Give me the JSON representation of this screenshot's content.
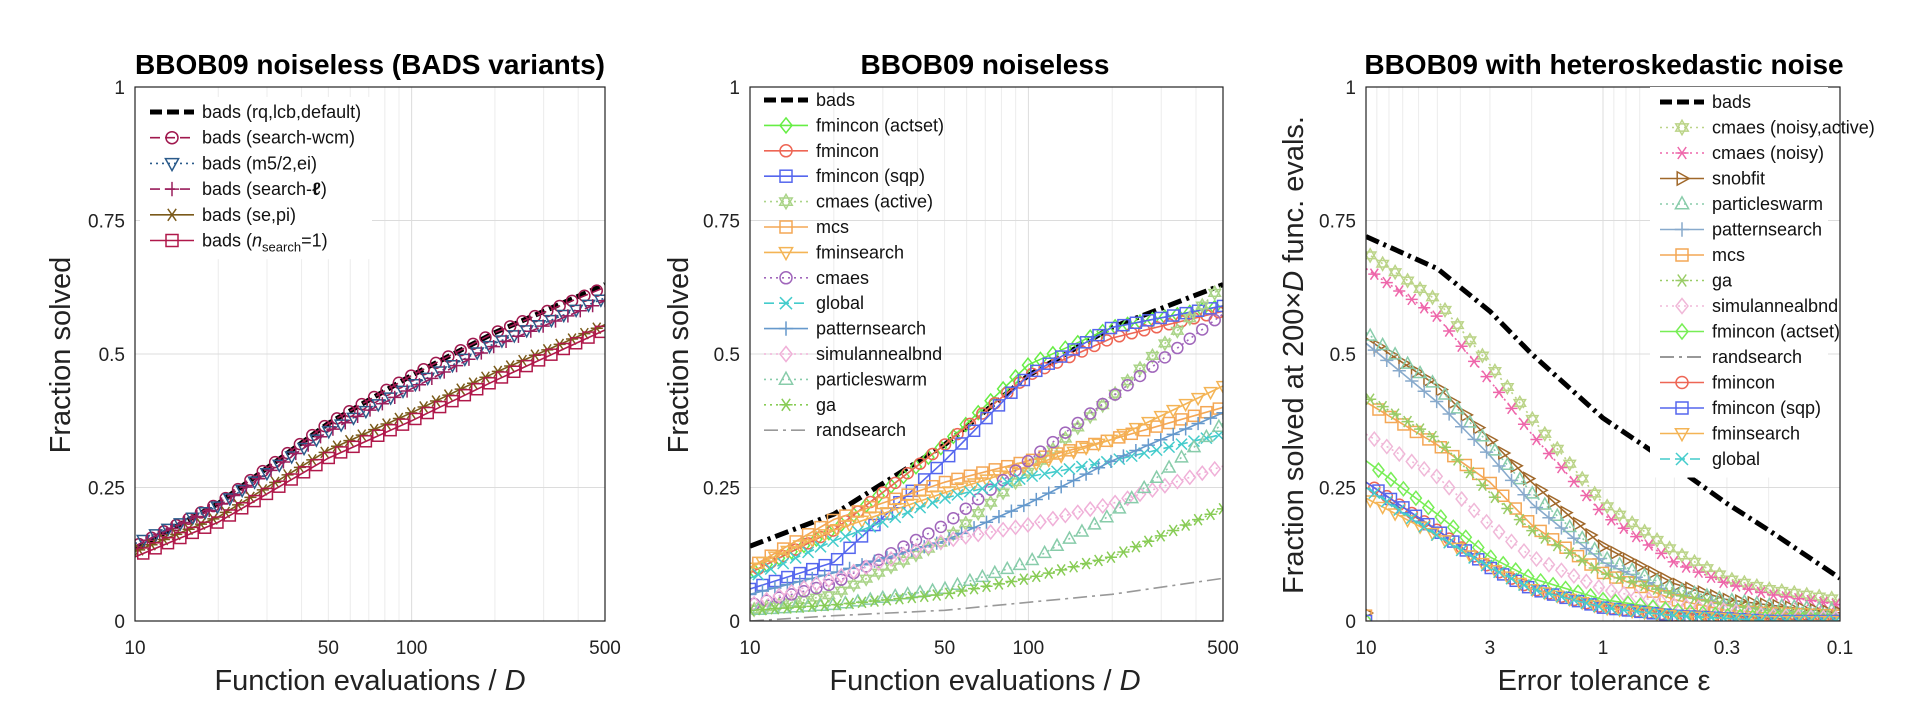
{
  "chart_data": [
    {
      "type": "line",
      "title": "BBOB09 noiseless (BADS variants)",
      "xlabel": "Function evaluations / ",
      "xlabel_italic": "D",
      "ylabel": "Fraction solved",
      "xscale": "log",
      "xlim": [
        10,
        500
      ],
      "ylim": [
        0,
        1
      ],
      "xticks": [
        10,
        50,
        100,
        500
      ],
      "xtick_labels": [
        "10",
        "50",
        "100",
        "500"
      ],
      "yticks": [
        0,
        0.25,
        0.5,
        0.75,
        1
      ],
      "ytick_labels": [
        "0",
        "0.25",
        "0.5",
        "0.75",
        "1"
      ],
      "grid": true,
      "legend": "top-left",
      "x": [
        10,
        20,
        50,
        100,
        200,
        500
      ],
      "series": [
        {
          "name": "bads (rq,lcb,default)",
          "color": "#000000",
          "style": "dash",
          "marker": "none",
          "width": 5,
          "values": [
            0.135,
            0.22,
            0.37,
            0.46,
            0.54,
            0.63
          ]
        },
        {
          "name": "bads (search-wcm)",
          "color": "#a0184e",
          "style": "dash",
          "marker": "circle",
          "width": 1.6,
          "values": [
            0.14,
            0.22,
            0.37,
            0.46,
            0.54,
            0.625
          ]
        },
        {
          "name": "bads (m5/2,ei)",
          "color": "#2a5a8a",
          "style": "dot",
          "marker": "triangle-down",
          "width": 1.6,
          "values": [
            0.145,
            0.215,
            0.355,
            0.44,
            0.52,
            0.605
          ]
        },
        {
          "name": "bads (search-",
          "name_bold": "ℓ",
          "name_after": ")",
          "color": "#9a1e5c",
          "style": "dash",
          "marker": "plus",
          "width": 1.6,
          "values": [
            0.14,
            0.215,
            0.355,
            0.435,
            0.515,
            0.6
          ]
        },
        {
          "name": "bads (se,pi)",
          "color": "#7a5a1a",
          "style": "solid",
          "marker": "asterisk",
          "width": 1.6,
          "values": [
            0.13,
            0.195,
            0.32,
            0.39,
            0.465,
            0.555
          ]
        },
        {
          "name": "bads (",
          "name_italic": "n",
          "name_sub": "search",
          "name_after": "=1)",
          "color": "#b0184a",
          "style": "solid",
          "marker": "square",
          "width": 1.6,
          "values": [
            0.12,
            0.185,
            0.305,
            0.375,
            0.45,
            0.545
          ]
        }
      ]
    },
    {
      "type": "line",
      "title": "BBOB09 noiseless",
      "xlabel": "Function evaluations / ",
      "xlabel_italic": "D",
      "ylabel": "Fraction solved",
      "xscale": "log",
      "xlim": [
        10,
        500
      ],
      "ylim": [
        0,
        1
      ],
      "xticks": [
        10,
        50,
        100,
        500
      ],
      "xtick_labels": [
        "10",
        "50",
        "100",
        "500"
      ],
      "yticks": [
        0,
        0.25,
        0.5,
        0.75,
        1
      ],
      "ytick_labels": [
        "0",
        "0.25",
        "0.5",
        "0.75",
        "1"
      ],
      "grid": true,
      "legend": "top-left",
      "x": [
        10,
        20,
        50,
        100,
        200,
        500
      ],
      "series": [
        {
          "name": "bads",
          "color": "#000000",
          "style": "dashdot",
          "marker": "none",
          "width": 5,
          "values": [
            0.14,
            0.2,
            0.33,
            0.46,
            0.55,
            0.63
          ]
        },
        {
          "name": "fmincon (actset)",
          "color": "#66ee44",
          "style": "solid",
          "marker": "diamond",
          "width": 1.6,
          "values": [
            0.09,
            0.17,
            0.33,
            0.48,
            0.55,
            0.59
          ]
        },
        {
          "name": "fmincon",
          "color": "#ee6655",
          "style": "solid",
          "marker": "circle",
          "width": 1.6,
          "values": [
            0.09,
            0.17,
            0.33,
            0.46,
            0.53,
            0.58
          ]
        },
        {
          "name": "fmincon (sqp)",
          "color": "#5566ee",
          "style": "solid",
          "marker": "square",
          "width": 1.6,
          "values": [
            0.06,
            0.11,
            0.3,
            0.46,
            0.55,
            0.59
          ]
        },
        {
          "name": "cmaes (active)",
          "color": "#aad488",
          "style": "dot",
          "marker": "hexagram",
          "width": 1.6,
          "values": [
            0.02,
            0.05,
            0.15,
            0.28,
            0.42,
            0.63
          ]
        },
        {
          "name": "mcs",
          "color": "#f4a755",
          "style": "solid",
          "marker": "square",
          "width": 1.6,
          "values": [
            0.1,
            0.19,
            0.26,
            0.3,
            0.34,
            0.4
          ]
        },
        {
          "name": "fminsearch",
          "color": "#f4b455",
          "style": "solid",
          "marker": "triangle-down",
          "width": 1.6,
          "values": [
            0.1,
            0.17,
            0.24,
            0.29,
            0.34,
            0.44
          ]
        },
        {
          "name": "cmaes",
          "color": "#a066bb",
          "style": "dot",
          "marker": "circle",
          "width": 1.6,
          "values": [
            0.03,
            0.07,
            0.18,
            0.3,
            0.42,
            0.575
          ]
        },
        {
          "name": "global",
          "color": "#44cccc",
          "style": "dash",
          "marker": "x",
          "width": 1.6,
          "values": [
            0.08,
            0.15,
            0.23,
            0.27,
            0.3,
            0.35
          ]
        },
        {
          "name": "patternsearch",
          "color": "#6699cc",
          "style": "solid",
          "marker": "plus",
          "width": 1.6,
          "values": [
            0.05,
            0.09,
            0.15,
            0.22,
            0.3,
            0.39
          ]
        },
        {
          "name": "simulannealbnd",
          "color": "#f0b0d8",
          "style": "dot",
          "marker": "diamond",
          "width": 1.6,
          "values": [
            0.03,
            0.08,
            0.15,
            0.18,
            0.22,
            0.29
          ]
        },
        {
          "name": "particleswarm",
          "color": "#88ccaa",
          "style": "dot",
          "marker": "triangle-up",
          "width": 1.6,
          "values": [
            0.02,
            0.03,
            0.06,
            0.11,
            0.2,
            0.37
          ]
        },
        {
          "name": "ga",
          "color": "#88cc55",
          "style": "dot",
          "marker": "asterisk",
          "width": 1.6,
          "values": [
            0.02,
            0.03,
            0.05,
            0.08,
            0.12,
            0.21
          ]
        },
        {
          "name": "randsearch",
          "color": "#999999",
          "style": "dashdot",
          "marker": "none",
          "width": 1.6,
          "values": [
            0.0,
            0.01,
            0.02,
            0.035,
            0.05,
            0.08
          ]
        }
      ]
    },
    {
      "type": "line",
      "title": "BBOB09 with heteroskedastic noise",
      "xlabel": "Error tolerance ε",
      "ylabel_parts": [
        "Fraction solved at 200×",
        "D",
        " func. evals."
      ],
      "xscale": "log-reversed",
      "xlim": [
        10,
        0.1
      ],
      "ylim": [
        0,
        1
      ],
      "xticks": [
        10,
        3,
        1,
        0.3,
        0.1
      ],
      "xtick_labels": [
        "10",
        "3",
        "1",
        "0.3",
        "0.1"
      ],
      "yticks": [
        0,
        0.25,
        0.5,
        0.75,
        1
      ],
      "ytick_labels": [
        "0",
        "0.25",
        "0.5",
        "0.75",
        "1"
      ],
      "grid": true,
      "legend": "top-right",
      "x": [
        10,
        5,
        3,
        2,
        1,
        0.5,
        0.3,
        0.2,
        0.1
      ],
      "series": [
        {
          "name": "bads",
          "color": "#000000",
          "style": "dashdot",
          "marker": "none",
          "width": 5,
          "values": [
            0.72,
            0.66,
            0.58,
            0.5,
            0.38,
            0.29,
            0.22,
            0.17,
            0.08
          ]
        },
        {
          "name": "cmaes (noisy,active)",
          "color": "#bbd488",
          "style": "dot",
          "marker": "hexagram",
          "width": 1.6,
          "values": [
            0.69,
            0.6,
            0.48,
            0.38,
            0.22,
            0.13,
            0.08,
            0.06,
            0.04
          ]
        },
        {
          "name": "cmaes (noisy)",
          "color": "#ee66aa",
          "style": "dot",
          "marker": "asterisk",
          "width": 1.6,
          "values": [
            0.66,
            0.57,
            0.45,
            0.35,
            0.2,
            0.11,
            0.07,
            0.05,
            0.03
          ]
        },
        {
          "name": "snobfit",
          "color": "#a0682a",
          "style": "solid",
          "marker": "triangle-right",
          "width": 1.6,
          "values": [
            0.53,
            0.44,
            0.34,
            0.26,
            0.14,
            0.07,
            0.04,
            0.03,
            0.015
          ]
        },
        {
          "name": "particleswarm",
          "color": "#88ccaa",
          "style": "dot",
          "marker": "triangle-up",
          "width": 1.6,
          "values": [
            0.54,
            0.44,
            0.33,
            0.24,
            0.12,
            0.06,
            0.04,
            0.03,
            0.02
          ]
        },
        {
          "name": "patternsearch",
          "color": "#88aacc",
          "style": "solid",
          "marker": "plus",
          "width": 1.6,
          "values": [
            0.52,
            0.41,
            0.31,
            0.22,
            0.11,
            0.05,
            0.03,
            0.02,
            0.01
          ]
        },
        {
          "name": "mcs",
          "color": "#f4a755",
          "style": "solid",
          "marker": "square",
          "width": 1.6,
          "values": [
            0.41,
            0.33,
            0.26,
            0.18,
            0.09,
            0.04,
            0.02,
            0.015,
            0.01
          ]
        },
        {
          "name": "ga",
          "color": "#99cc66",
          "style": "dot",
          "marker": "asterisk",
          "width": 1.6,
          "values": [
            0.42,
            0.34,
            0.24,
            0.17,
            0.09,
            0.05,
            0.03,
            0.02,
            0.01
          ]
        },
        {
          "name": "simulannealbnd",
          "color": "#f0b8d8",
          "style": "dot",
          "marker": "diamond",
          "width": 1.6,
          "values": [
            0.35,
            0.27,
            0.18,
            0.12,
            0.06,
            0.03,
            0.02,
            0.01,
            0.005
          ]
        },
        {
          "name": "fmincon (actset)",
          "color": "#77ee55",
          "style": "solid",
          "marker": "diamond",
          "width": 1.6,
          "values": [
            0.3,
            0.2,
            0.12,
            0.08,
            0.04,
            0.02,
            0.01,
            0.005,
            0.0
          ]
        },
        {
          "name": "randsearch",
          "color": "#777777",
          "style": "dashdot",
          "marker": "none",
          "width": 1.6,
          "values": [
            0.25,
            0.17,
            0.1,
            0.06,
            0.03,
            0.015,
            0.01,
            0.005,
            0.0
          ]
        },
        {
          "name": "fmincon",
          "color": "#ee6655",
          "style": "solid",
          "marker": "circle",
          "width": 1.6,
          "values": [
            0.26,
            0.17,
            0.1,
            0.06,
            0.025,
            0.01,
            0.005,
            0.0,
            0.0
          ]
        },
        {
          "name": "fmincon (sqp)",
          "color": "#5566ee",
          "style": "solid",
          "marker": "square",
          "width": 1.6,
          "values": [
            0.26,
            0.17,
            0.1,
            0.06,
            0.025,
            0.01,
            0.005,
            0.0,
            0.0
          ]
        },
        {
          "name": "fminsearch",
          "color": "#f4b455",
          "style": "solid",
          "marker": "triangle-down",
          "width": 1.6,
          "values": [
            0.23,
            0.16,
            0.1,
            0.06,
            0.025,
            0.01,
            0.005,
            0.0,
            0.0
          ]
        },
        {
          "name": "global",
          "color": "#44cccc",
          "style": "dash",
          "marker": "x",
          "width": 1.6,
          "values": [
            0.25,
            0.16,
            0.1,
            0.06,
            0.025,
            0.01,
            0.005,
            0.0,
            0.0
          ]
        }
      ]
    }
  ]
}
